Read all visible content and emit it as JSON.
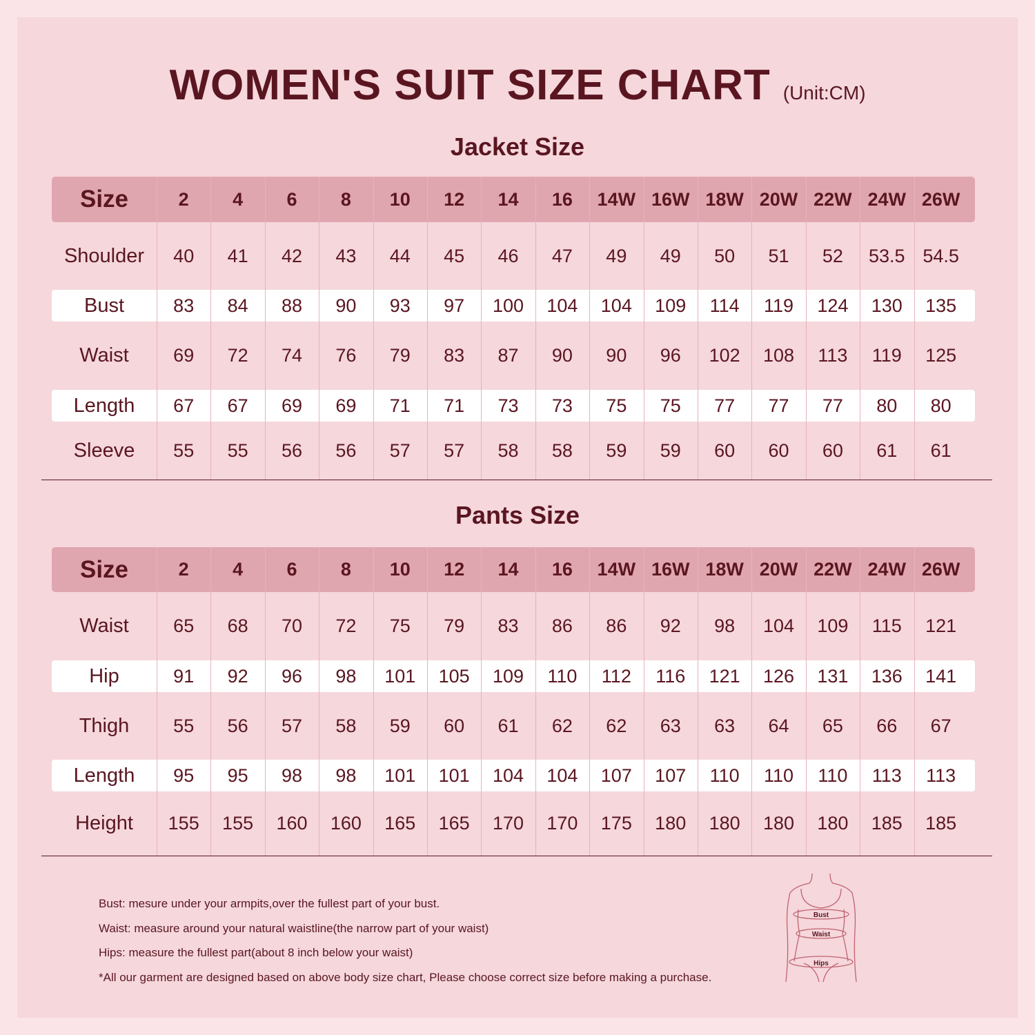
{
  "title": "WOMEN'S SUIT SIZE CHART",
  "unit": "(Unit:CM)",
  "sizes": [
    "2",
    "4",
    "6",
    "8",
    "10",
    "12",
    "14",
    "16",
    "14W",
    "16W",
    "18W",
    "20W",
    "22W",
    "24W",
    "26W"
  ],
  "jacket": {
    "title": "Jacket Size",
    "header_label": "Size",
    "rows": [
      {
        "label": "Shoulder",
        "values": [
          "40",
          "41",
          "42",
          "43",
          "44",
          "45",
          "46",
          "47",
          "49",
          "49",
          "50",
          "51",
          "52",
          "53.5",
          "54.5"
        ]
      },
      {
        "label": "Bust",
        "values": [
          "83",
          "84",
          "88",
          "90",
          "93",
          "97",
          "100",
          "104",
          "104",
          "109",
          "114",
          "119",
          "124",
          "130",
          "135"
        ]
      },
      {
        "label": "Waist",
        "values": [
          "69",
          "72",
          "74",
          "76",
          "79",
          "83",
          "87",
          "90",
          "90",
          "96",
          "102",
          "108",
          "113",
          "119",
          "125"
        ]
      },
      {
        "label": "Length",
        "values": [
          "67",
          "67",
          "69",
          "69",
          "71",
          "71",
          "73",
          "73",
          "75",
          "75",
          "77",
          "77",
          "77",
          "80",
          "80"
        ]
      },
      {
        "label": "Sleeve",
        "values": [
          "55",
          "55",
          "56",
          "56",
          "57",
          "57",
          "58",
          "58",
          "59",
          "59",
          "60",
          "60",
          "60",
          "61",
          "61"
        ]
      }
    ]
  },
  "pants": {
    "title": "Pants Size",
    "header_label": "Size",
    "rows": [
      {
        "label": "Waist",
        "values": [
          "65",
          "68",
          "70",
          "72",
          "75",
          "79",
          "83",
          "86",
          "86",
          "92",
          "98",
          "104",
          "109",
          "115",
          "121"
        ]
      },
      {
        "label": "Hip",
        "values": [
          "91",
          "92",
          "96",
          "98",
          "101",
          "105",
          "109",
          "110",
          "112",
          "116",
          "121",
          "126",
          "131",
          "136",
          "141"
        ]
      },
      {
        "label": "Thigh",
        "values": [
          "55",
          "56",
          "57",
          "58",
          "59",
          "60",
          "61",
          "62",
          "62",
          "63",
          "63",
          "64",
          "65",
          "66",
          "67"
        ]
      },
      {
        "label": "Length",
        "values": [
          "95",
          "95",
          "98",
          "98",
          "101",
          "101",
          "104",
          "104",
          "107",
          "107",
          "110",
          "110",
          "110",
          "113",
          "113"
        ]
      },
      {
        "label": "Height",
        "values": [
          "155",
          "155",
          "160",
          "160",
          "165",
          "165",
          "170",
          "170",
          "175",
          "180",
          "180",
          "180",
          "180",
          "185",
          "185"
        ]
      }
    ]
  },
  "notes": [
    "Bust: mesure under your armpits,over the fullest part of your bust.",
    "Waist: measure around your natural waistline(the narrow part of your waist)",
    "Hips: measure the fullest part(about 8 inch below your waist)",
    "*All our garment are designed based on above body size chart, Please choose correct size before making a purchase."
  ],
  "figure": {
    "labels": [
      "Bust",
      "Waist",
      "Hips"
    ]
  },
  "colors": {
    "text": "#5a1620",
    "header_row": "#e0a6af",
    "panel": "#f5d7dc",
    "alt_row": "#ffffff"
  }
}
